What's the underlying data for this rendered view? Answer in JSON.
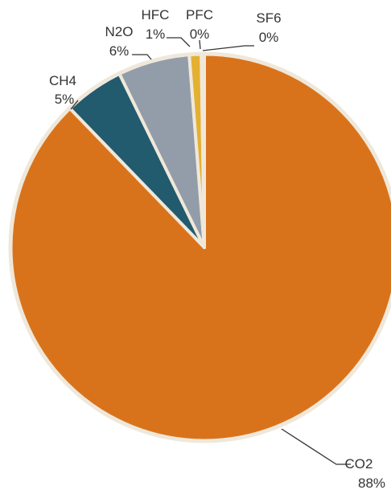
{
  "chart_data": {
    "type": "pie",
    "title": "",
    "slices": [
      {
        "label": "CO2",
        "value": 88,
        "pct_label": "88%",
        "color": "#d9731b"
      },
      {
        "label": "CH4",
        "value": 5,
        "pct_label": "5%",
        "color": "#225a6e"
      },
      {
        "label": "N2O",
        "value": 6,
        "pct_label": "6%",
        "color": "#939ca9"
      },
      {
        "label": "HFC",
        "value": 1,
        "pct_label": "1%",
        "color": "#e4b031"
      },
      {
        "label": "PFC",
        "value": 0,
        "pct_label": "0%",
        "color": "#b0b6be"
      },
      {
        "label": "SF6",
        "value": 0,
        "pct_label": "0%",
        "color": "#7f7f7f"
      }
    ],
    "slice_border_color": "#efe8da",
    "start_angle": "12 o'clock",
    "direction": "clockwise, CO2 first",
    "legend": "none (leader-line labels)"
  }
}
